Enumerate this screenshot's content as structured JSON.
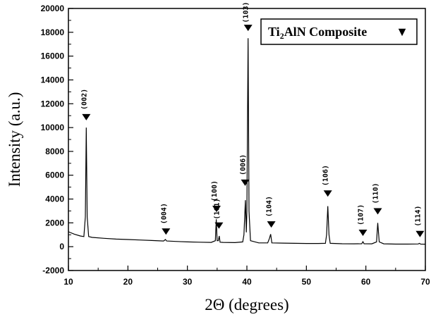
{
  "chart_data": {
    "type": "line",
    "xlabel": "2Θ (degrees)",
    "ylabel": "Intensity (a.u.)",
    "xlim": [
      10,
      70
    ],
    "ylim": [
      -2000,
      20000
    ],
    "xticks": [
      10,
      20,
      30,
      40,
      50,
      60,
      70
    ],
    "yticks": [
      -2000,
      0,
      2000,
      4000,
      6000,
      8000,
      10000,
      12000,
      14000,
      16000,
      18000,
      20000
    ],
    "grid": false,
    "legend": {
      "position": "top-right",
      "text_main_1": "Ti",
      "text_sub": "2",
      "text_main_2": "AlN Composite",
      "marker": "▼"
    },
    "series": [
      {
        "values": [
          [
            10,
            1250
          ],
          [
            11,
            1050
          ],
          [
            12,
            900
          ],
          [
            12.6,
            850
          ],
          [
            12.85,
            2500
          ],
          [
            13.0,
            10000
          ],
          [
            13.15,
            2500
          ],
          [
            13.4,
            850
          ],
          [
            14,
            780
          ],
          [
            16,
            700
          ],
          [
            18,
            640
          ],
          [
            20,
            600
          ],
          [
            22,
            560
          ],
          [
            24,
            520
          ],
          [
            26,
            480
          ],
          [
            26.3,
            600
          ],
          [
            26.5,
            480
          ],
          [
            28,
            440
          ],
          [
            30,
            400
          ],
          [
            32,
            380
          ],
          [
            34,
            360
          ],
          [
            34.7,
            500
          ],
          [
            34.85,
            2300
          ],
          [
            35.0,
            500
          ],
          [
            35.2,
            500
          ],
          [
            35.35,
            900
          ],
          [
            35.5,
            380
          ],
          [
            36,
            360
          ],
          [
            38,
            340
          ],
          [
            39.3,
            400
          ],
          [
            39.5,
            1000
          ],
          [
            39.75,
            3900
          ],
          [
            39.9,
            1200
          ],
          [
            40.0,
            3000
          ],
          [
            40.2,
            17500
          ],
          [
            40.35,
            3000
          ],
          [
            40.6,
            500
          ],
          [
            42,
            320
          ],
          [
            43.5,
            320
          ],
          [
            43.8,
            700
          ],
          [
            44.0,
            1050
          ],
          [
            44.2,
            320
          ],
          [
            46,
            300
          ],
          [
            48,
            280
          ],
          [
            50,
            270
          ],
          [
            52,
            270
          ],
          [
            53.2,
            280
          ],
          [
            53.4,
            1000
          ],
          [
            53.6,
            3400
          ],
          [
            53.8,
            1000
          ],
          [
            54.0,
            280
          ],
          [
            56,
            250
          ],
          [
            58,
            240
          ],
          [
            59.3,
            250
          ],
          [
            59.5,
            420
          ],
          [
            59.7,
            250
          ],
          [
            61,
            240
          ],
          [
            61.8,
            400
          ],
          [
            62.0,
            2000
          ],
          [
            62.25,
            400
          ],
          [
            63,
            240
          ],
          [
            65,
            220
          ],
          [
            67,
            220
          ],
          [
            68.8,
            230
          ],
          [
            69.0,
            280
          ],
          [
            69.2,
            220
          ],
          [
            70,
            210
          ]
        ]
      }
    ],
    "peaks": [
      {
        "label": "(002)",
        "x": 13.0,
        "y": 10000,
        "marker_y": 10600,
        "label_y": 12200
      },
      {
        "label": "(004)",
        "x": 26.4,
        "y": 600,
        "marker_y": 1000,
        "label_y": 2600
      },
      {
        "label": "(100)",
        "x": 34.9,
        "y": 2300,
        "marker_y": 2900,
        "label_y": 4500
      },
      {
        "label": "(101)",
        "x": 35.3,
        "y": 900,
        "marker_y": 1500,
        "label_y": 3000
      },
      {
        "label": "(006)",
        "x": 39.7,
        "y": 3900,
        "marker_y": 5100,
        "label_y": 6700
      },
      {
        "label": "(103)",
        "x": 40.2,
        "y": 17500,
        "marker_y": 18100,
        "label_y": 19500
      },
      {
        "label": "(104)",
        "x": 44.1,
        "y": 1050,
        "marker_y": 1600,
        "label_y": 3200
      },
      {
        "label": "(106)",
        "x": 53.6,
        "y": 3400,
        "marker_y": 4200,
        "label_y": 5800
      },
      {
        "label": "(107)",
        "x": 59.5,
        "y": 420,
        "marker_y": 900,
        "label_y": 2500
      },
      {
        "label": "(110)",
        "x": 62.0,
        "y": 2000,
        "marker_y": 2700,
        "label_y": 4300
      },
      {
        "label": "(114)",
        "x": 69.1,
        "y": 280,
        "marker_y": 800,
        "label_y": 2400
      }
    ]
  }
}
